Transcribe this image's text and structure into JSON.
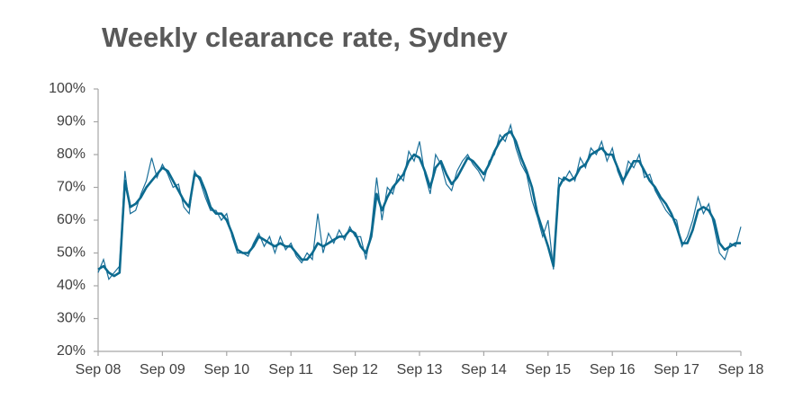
{
  "chart_data": {
    "type": "line",
    "title": "Weekly clearance rate, Sydney",
    "x": [
      0,
      1,
      2,
      3,
      4,
      5,
      6,
      7,
      8,
      9,
      10,
      11,
      12,
      13,
      14,
      15,
      16,
      17,
      18,
      19,
      20,
      21,
      22,
      23,
      24,
      25,
      26,
      27,
      28,
      29,
      30,
      31,
      32,
      33,
      34,
      35,
      36,
      37,
      38,
      39,
      40,
      41,
      42,
      43,
      44,
      45,
      46,
      47,
      48,
      49,
      50,
      51,
      52,
      53,
      54,
      55,
      56,
      57,
      58,
      59,
      60,
      61,
      62,
      63,
      64,
      65,
      66,
      67,
      68,
      69,
      70,
      71,
      72,
      73,
      74,
      75,
      76,
      77,
      78,
      79,
      80,
      81,
      82,
      83,
      84,
      85,
      86,
      87,
      88,
      89,
      90,
      91,
      92,
      93,
      94,
      95,
      96,
      97,
      98,
      99,
      100,
      101,
      102,
      103,
      104,
      105,
      106,
      107,
      108,
      109,
      110,
      111,
      112,
      113,
      114,
      115,
      116,
      117,
      118,
      119,
      120
    ],
    "series": [
      {
        "color": "#1a6f99",
        "values": [
          44,
          48,
          42,
          44,
          46,
          75,
          62,
          63,
          68,
          72,
          79,
          73,
          77,
          74,
          70,
          71,
          64,
          62,
          75,
          72,
          67,
          63,
          63,
          60,
          62,
          55,
          50,
          50,
          49,
          53,
          56,
          52,
          55,
          50,
          55,
          51,
          53,
          49,
          47,
          50,
          48,
          62,
          50,
          56,
          53,
          57,
          54,
          58,
          55,
          55,
          48,
          57,
          73,
          60,
          70,
          68,
          74,
          72,
          81,
          78,
          84,
          74,
          68,
          80,
          77,
          71,
          69,
          75,
          78,
          80,
          77,
          75,
          72,
          78,
          80,
          86,
          84,
          89,
          82,
          77,
          74,
          66,
          61,
          55,
          60,
          45,
          73,
          72,
          75,
          72,
          79,
          76,
          82,
          80,
          84,
          78,
          82,
          75,
          71,
          78,
          76,
          80,
          73,
          74,
          69,
          66,
          63,
          61,
          60,
          52,
          55,
          60,
          67,
          62,
          65,
          58,
          50,
          48,
          53,
          52,
          58
        ]
      },
      {
        "color": "#0b6a8f",
        "values": [
          45,
          46,
          44,
          43,
          44,
          72,
          64,
          65,
          67,
          70,
          72,
          74,
          76,
          75,
          72,
          69,
          66,
          64,
          74,
          73,
          69,
          64,
          62,
          62,
          60,
          56,
          51,
          50,
          50,
          52,
          55,
          54,
          53,
          52,
          53,
          52,
          52,
          50,
          48,
          48,
          50,
          53,
          52,
          53,
          54,
          55,
          55,
          57,
          56,
          52,
          50,
          55,
          68,
          63,
          67,
          70,
          72,
          74,
          78,
          80,
          79,
          75,
          70,
          76,
          78,
          74,
          71,
          73,
          76,
          79,
          78,
          76,
          74,
          77,
          81,
          84,
          86,
          87,
          84,
          79,
          75,
          70,
          62,
          57,
          52,
          46,
          70,
          73,
          72,
          73,
          76,
          77,
          80,
          81,
          82,
          80,
          80,
          76,
          72,
          75,
          78,
          78,
          75,
          72,
          70,
          67,
          65,
          62,
          58,
          53,
          53,
          57,
          63,
          64,
          63,
          60,
          53,
          51,
          52,
          53,
          53
        ]
      }
    ],
    "xlim": [
      0,
      120
    ],
    "xticks": [
      {
        "value": 0,
        "label": "Sep 08"
      },
      {
        "value": 12,
        "label": "Sep 09"
      },
      {
        "value": 24,
        "label": "Sep 10"
      },
      {
        "value": 36,
        "label": "Sep 11"
      },
      {
        "value": 48,
        "label": "Sep 12"
      },
      {
        "value": 60,
        "label": "Sep 13"
      },
      {
        "value": 72,
        "label": "Sep 14"
      },
      {
        "value": 84,
        "label": "Sep 15"
      },
      {
        "value": 96,
        "label": "Sep 16"
      },
      {
        "value": 108,
        "label": "Sep 17"
      },
      {
        "value": 120,
        "label": "Sep 18"
      }
    ],
    "ylim": [
      20,
      100
    ],
    "yticks": [
      {
        "value": 20,
        "label": "20%"
      },
      {
        "value": 30,
        "label": "30%"
      },
      {
        "value": 40,
        "label": "40%"
      },
      {
        "value": 50,
        "label": "50%"
      },
      {
        "value": 60,
        "label": "60%"
      },
      {
        "value": 70,
        "label": "70%"
      },
      {
        "value": 80,
        "label": "80%"
      },
      {
        "value": 90,
        "label": "90%"
      },
      {
        "value": 100,
        "label": "100%"
      }
    ]
  }
}
